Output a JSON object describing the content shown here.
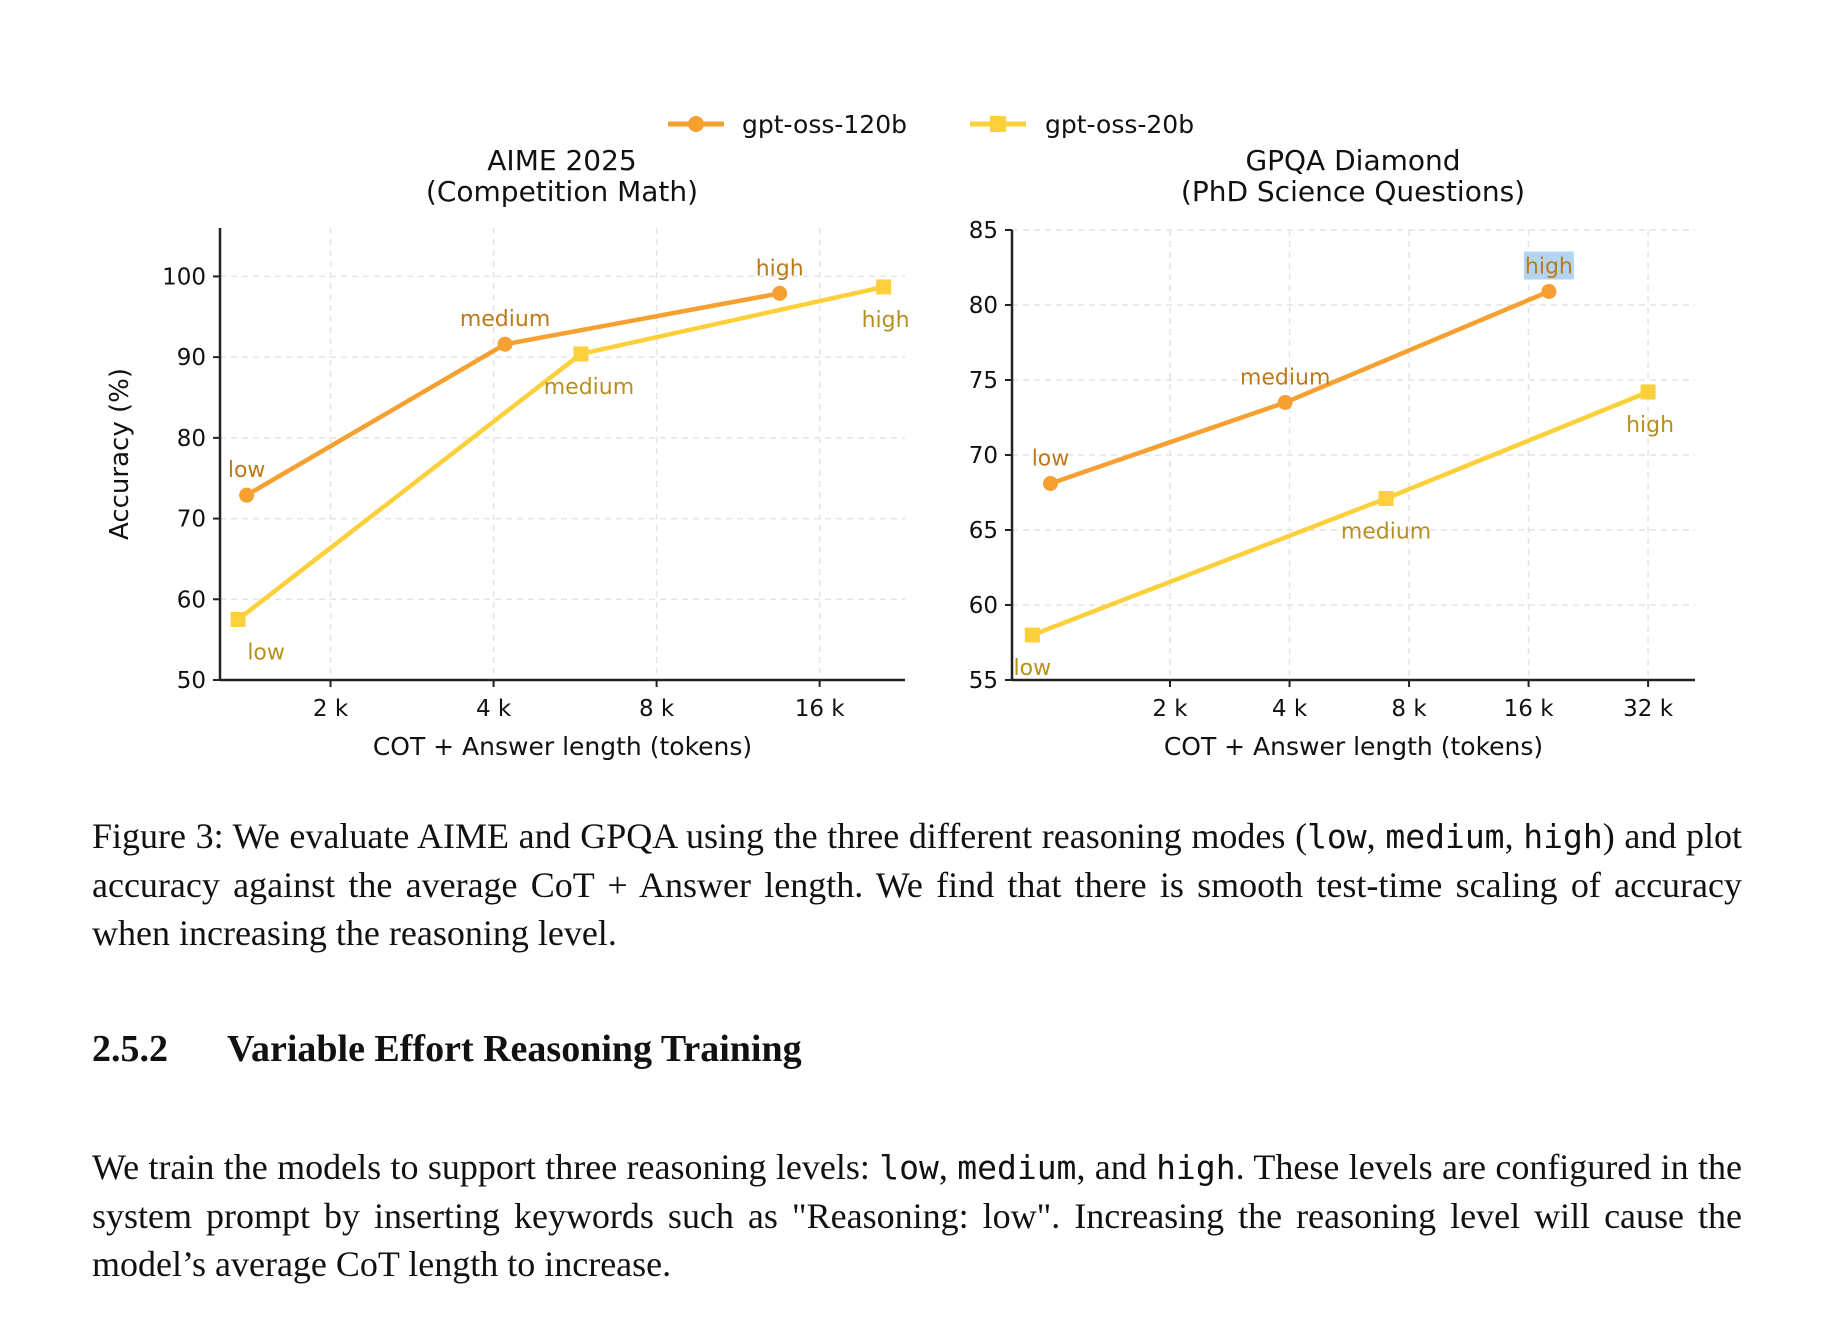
{
  "legend": [
    {
      "name": "gpt-oss-120b",
      "marker": "circle",
      "color": "#f5a030"
    },
    {
      "name": "gpt-oss-20b",
      "marker": "square",
      "color": "#fcd03a"
    }
  ],
  "chart_data": [
    {
      "type": "line",
      "title": "AIME 2025",
      "subtitle": "(Competition Math)",
      "xlabel": "COT + Answer length (tokens)",
      "ylabel": "Accuracy (%)",
      "xscale": "log2",
      "xlim_tokens": [
        1250,
        23000
      ],
      "ylim": [
        50,
        106
      ],
      "yticks": [
        50,
        60,
        70,
        80,
        90,
        100
      ],
      "xticks": [
        {
          "value": 2000,
          "label": "2 k"
        },
        {
          "value": 4000,
          "label": "4 k"
        },
        {
          "value": 8000,
          "label": "8 k"
        },
        {
          "value": 16000,
          "label": "16 k"
        }
      ],
      "grid": true,
      "series": [
        {
          "name": "gpt-oss-120b",
          "marker": "circle",
          "color": "#f5a030",
          "label_color": "#bf7a18",
          "points": [
            {
              "x": 1400,
              "y": 72.9,
              "label": "low",
              "label_pos": "above"
            },
            {
              "x": 4200,
              "y": 91.6,
              "label": "medium",
              "label_pos": "above"
            },
            {
              "x": 13500,
              "y": 97.9,
              "label": "high",
              "label_pos": "above"
            }
          ]
        },
        {
          "name": "gpt-oss-20b",
          "marker": "square",
          "color": "#fcd03a",
          "label_color": "#b8901e",
          "points": [
            {
              "x": 1350,
              "y": 57.5,
              "label": "low",
              "label_pos": "below"
            },
            {
              "x": 5800,
              "y": 90.4,
              "label": "medium",
              "label_pos": "below"
            },
            {
              "x": 21000,
              "y": 98.7,
              "label": "high",
              "label_pos": "below"
            }
          ]
        }
      ]
    },
    {
      "type": "line",
      "title": "GPQA Diamond",
      "subtitle": "(PhD Science Questions)",
      "xlabel": "COT + Answer length (tokens)",
      "ylabel": "",
      "xscale": "log2",
      "xlim_tokens": [
        800,
        42000
      ],
      "ylim": [
        55,
        85
      ],
      "yticks": [
        55,
        60,
        65,
        70,
        75,
        80,
        85
      ],
      "xticks": [
        {
          "value": 2000,
          "label": "2 k"
        },
        {
          "value": 4000,
          "label": "4 k"
        },
        {
          "value": 8000,
          "label": "8 k"
        },
        {
          "value": 16000,
          "label": "16 k"
        },
        {
          "value": 32000,
          "label": "32 k"
        }
      ],
      "grid": true,
      "series": [
        {
          "name": "gpt-oss-120b",
          "marker": "circle",
          "color": "#f5a030",
          "label_color": "#bf7a18",
          "points": [
            {
              "x": 1000,
              "y": 68.1,
              "label": "low",
              "label_pos": "above"
            },
            {
              "x": 3900,
              "y": 73.5,
              "label": "medium",
              "label_pos": "above"
            },
            {
              "x": 18000,
              "y": 80.9,
              "label": "high",
              "label_pos": "above",
              "highlight": true
            }
          ]
        },
        {
          "name": "gpt-oss-20b",
          "marker": "square",
          "color": "#fcd03a",
          "label_color": "#b8901e",
          "points": [
            {
              "x": 900,
              "y": 58.0,
              "label": "low",
              "label_pos": "below"
            },
            {
              "x": 7000,
              "y": 67.1,
              "label": "medium",
              "label_pos": "below"
            },
            {
              "x": 32000,
              "y": 74.2,
              "label": "high",
              "label_pos": "below"
            }
          ]
        }
      ]
    }
  ],
  "caption": {
    "prefix": "Figure 3: We evaluate AIME and GPQA using the three different reasoning modes (",
    "low": "low",
    "sep1": ", ",
    "medium": "medium",
    "sep2": ", ",
    "high": "high",
    "suffix": ") and plot accuracy against the average CoT + Answer length. We find that there is smooth test-time scaling of accuracy when increasing the reasoning level."
  },
  "section": {
    "number": "2.5.2",
    "title": "Variable Effort Reasoning Training"
  },
  "paragraph": {
    "part1": "We train the models to support three reasoning levels: ",
    "low": "low",
    "sep1": ", ",
    "medium": "medium",
    "sep2": ", and ",
    "high": "high",
    "part2": ". These levels are configured in the system prompt by inserting keywords such as \"Reasoning: low\". Increasing the reasoning level will cause the model’s average CoT length to increase."
  }
}
